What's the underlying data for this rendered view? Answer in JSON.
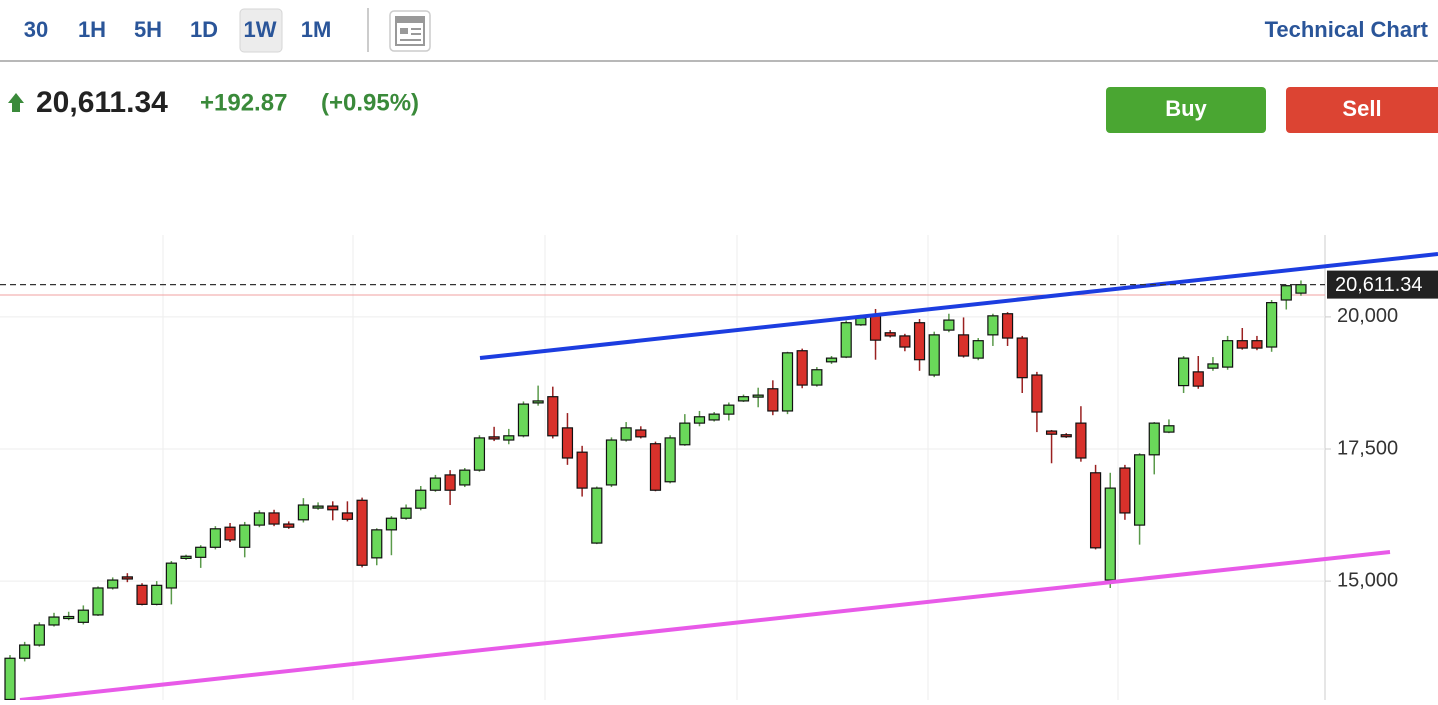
{
  "toolbar": {
    "intervals": [
      "30",
      "1H",
      "5H",
      "1D",
      "1W",
      "1M"
    ],
    "active": "1W",
    "title": "Technical Chart"
  },
  "quote": {
    "change": "+192.87",
    "percent": "(+0.95%)"
  },
  "actions": {
    "buy": "Buy",
    "sell": "Sell"
  },
  "chart_data": {
    "type": "candlestick",
    "up_color": "#6ad85a",
    "down_color": "#d8312b",
    "ylim": [
      12750,
      21550
    ],
    "yticks": [
      {
        "value": 15000,
        "label": "15,000"
      },
      {
        "value": 17500,
        "label": "17,500"
      },
      {
        "value": 20000,
        "label": "20,000"
      }
    ],
    "grid": true,
    "last_price": {
      "value": 20611.34,
      "label": "20,611.34"
    },
    "candles": [
      [
        12760,
        13600,
        12760,
        13540
      ],
      [
        13540,
        13850,
        13480,
        13790
      ],
      [
        13790,
        14220,
        13760,
        14170
      ],
      [
        14170,
        14400,
        14140,
        14320
      ],
      [
        14300,
        14420,
        14260,
        14330
      ],
      [
        14220,
        14540,
        14180,
        14450
      ],
      [
        14360,
        14900,
        14340,
        14870
      ],
      [
        14870,
        15070,
        14840,
        15020
      ],
      [
        15080,
        15150,
        14980,
        15040
      ],
      [
        14920,
        14960,
        14540,
        14560
      ],
      [
        14560,
        15000,
        14540,
        14920
      ],
      [
        14870,
        15380,
        14560,
        15340
      ],
      [
        15430,
        15500,
        15400,
        15470
      ],
      [
        15450,
        15680,
        15250,
        15640
      ],
      [
        15640,
        16040,
        15600,
        15990
      ],
      [
        16020,
        16100,
        15740,
        15780
      ],
      [
        15640,
        16120,
        15450,
        16060
      ],
      [
        16060,
        16340,
        16020,
        16290
      ],
      [
        16290,
        16350,
        16040,
        16080
      ],
      [
        16080,
        16130,
        15990,
        16020
      ],
      [
        16160,
        16570,
        16110,
        16440
      ],
      [
        16400,
        16490,
        16350,
        16420
      ],
      [
        16420,
        16510,
        16150,
        16350
      ],
      [
        16290,
        16510,
        16130,
        16170
      ],
      [
        16530,
        16580,
        15260,
        15300
      ],
      [
        15440,
        16000,
        15300,
        15970
      ],
      [
        15970,
        16230,
        15490,
        16190
      ],
      [
        16190,
        16450,
        16160,
        16380
      ],
      [
        16380,
        16800,
        16340,
        16720
      ],
      [
        16720,
        17010,
        16690,
        16950
      ],
      [
        17010,
        17100,
        16440,
        16720
      ],
      [
        16820,
        17140,
        16780,
        17100
      ],
      [
        17100,
        17760,
        17070,
        17710
      ],
      [
        17730,
        17920,
        17650,
        17690
      ],
      [
        17670,
        17880,
        17590,
        17750
      ],
      [
        17750,
        18400,
        17720,
        18350
      ],
      [
        18390,
        18700,
        18320,
        18410
      ],
      [
        18490,
        18680,
        17700,
        17750
      ],
      [
        17900,
        18180,
        17200,
        17330
      ],
      [
        17440,
        17560,
        16600,
        16760
      ],
      [
        15720,
        16790,
        15700,
        16760
      ],
      [
        16820,
        17720,
        16780,
        17670
      ],
      [
        17670,
        18010,
        17640,
        17900
      ],
      [
        17860,
        17930,
        17700,
        17730
      ],
      [
        17600,
        17640,
        16700,
        16720
      ],
      [
        16880,
        17760,
        16850,
        17710
      ],
      [
        17580,
        18160,
        17560,
        17990
      ],
      [
        17990,
        18220,
        17930,
        18110
      ],
      [
        18050,
        18200,
        18020,
        18160
      ],
      [
        18160,
        18380,
        18040,
        18330
      ],
      [
        18410,
        18530,
        18390,
        18490
      ],
      [
        18500,
        18660,
        18290,
        18520
      ],
      [
        18640,
        18800,
        18140,
        18220
      ],
      [
        18220,
        19340,
        18160,
        19320
      ],
      [
        19360,
        19400,
        18650,
        18710
      ],
      [
        18710,
        19050,
        18680,
        19000
      ],
      [
        19150,
        19260,
        19110,
        19220
      ],
      [
        19240,
        19930,
        19220,
        19890
      ],
      [
        19850,
        20040,
        19830,
        19980
      ],
      [
        20020,
        20150,
        19190,
        19560
      ],
      [
        19700,
        19750,
        19610,
        19640
      ],
      [
        19640,
        19680,
        19350,
        19430
      ],
      [
        19890,
        19960,
        18980,
        19190
      ],
      [
        18900,
        19720,
        18860,
        19660
      ],
      [
        19750,
        20060,
        19710,
        19940
      ],
      [
        19660,
        19990,
        19230,
        19260
      ],
      [
        19220,
        19600,
        19180,
        19550
      ],
      [
        19660,
        20060,
        19450,
        20020
      ],
      [
        20060,
        20090,
        19450,
        19600
      ],
      [
        19600,
        19640,
        18560,
        18850
      ],
      [
        18900,
        18960,
        17820,
        18200
      ],
      [
        17840,
        17860,
        17230,
        17780
      ],
      [
        17770,
        17800,
        17710,
        17750
      ],
      [
        17990,
        18310,
        17260,
        17330
      ],
      [
        17050,
        17200,
        15600,
        15630
      ],
      [
        15020,
        17050,
        14870,
        16760
      ],
      [
        17140,
        17200,
        16160,
        16290
      ],
      [
        16060,
        17420,
        15690,
        17390
      ],
      [
        17390,
        18010,
        17020,
        17990
      ],
      [
        17820,
        18060,
        17800,
        17940
      ],
      [
        18700,
        19260,
        18560,
        19220
      ],
      [
        18960,
        19260,
        18640,
        18690
      ],
      [
        19030,
        19240,
        18980,
        19110
      ],
      [
        19050,
        19640,
        19000,
        19550
      ],
      [
        19550,
        19790,
        19380,
        19410
      ],
      [
        19550,
        19640,
        19370,
        19410
      ],
      [
        19430,
        20320,
        19340,
        20270
      ],
      [
        20320,
        20610,
        20140,
        20590
      ],
      [
        20450,
        20690,
        20400,
        20610
      ]
    ]
  }
}
